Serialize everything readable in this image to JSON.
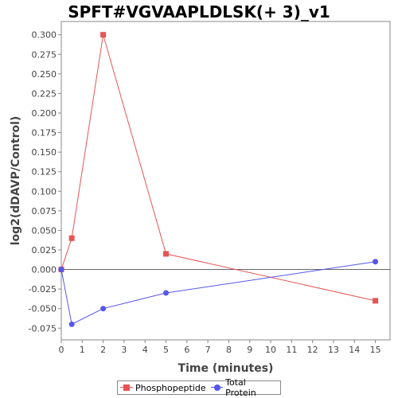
{
  "chart_data": {
    "type": "line",
    "title": "SPFT#VGVAAPLDLSK(+ 3)_v1",
    "xlabel": "Time (minutes)",
    "ylabel": "log2(dDAVP/Control)",
    "xlim": [
      0,
      15.7
    ],
    "ylim": [
      -0.09,
      0.317
    ],
    "xticks": [
      0,
      1,
      2,
      3,
      4,
      5,
      6,
      7,
      8,
      9,
      10,
      11,
      12,
      13,
      14,
      15
    ],
    "yticks": [
      -0.075,
      -0.05,
      -0.025,
      0.0,
      0.025,
      0.05,
      0.075,
      0.1,
      0.125,
      0.15,
      0.175,
      0.2,
      0.225,
      0.25,
      0.275,
      0.3
    ],
    "ytick_labels": [
      "-0.075",
      "-0.050",
      "-0.025",
      "0.000",
      "0.025",
      "0.050",
      "0.075",
      "0.100",
      "0.125",
      "0.150",
      "0.175",
      "0.200",
      "0.225",
      "0.250",
      "0.275",
      "0.300"
    ],
    "zero_line": true,
    "grid": false,
    "legend_position": "bottom",
    "series": [
      {
        "name": "Phosphopeptide",
        "color": "#e85454",
        "marker": "square",
        "x": [
          0,
          0.5,
          2,
          5,
          15
        ],
        "y": [
          0.0,
          0.04,
          0.3,
          0.02,
          -0.04
        ]
      },
      {
        "name": "Total Protein",
        "color": "#5555ee",
        "marker": "circle",
        "x": [
          0,
          0.5,
          2,
          5,
          15
        ],
        "y": [
          0.0,
          -0.07,
          -0.05,
          -0.03,
          0.01
        ]
      }
    ]
  }
}
